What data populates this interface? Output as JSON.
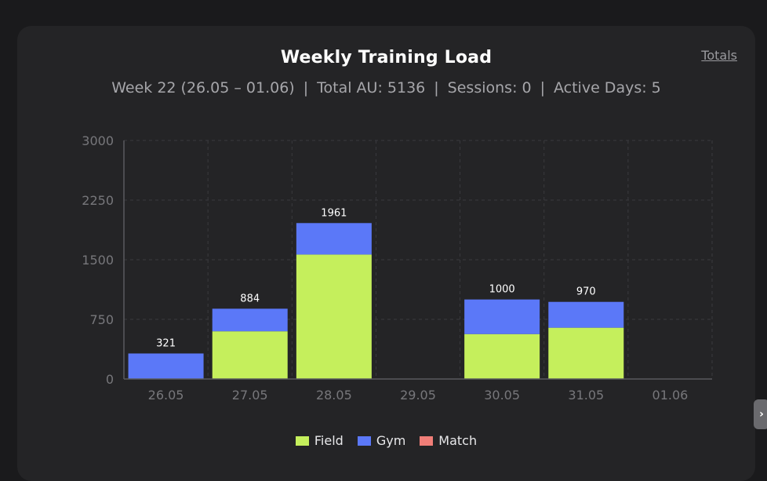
{
  "card": {
    "title": "Weekly Training Load",
    "totals_link": "Totals",
    "stats": {
      "week": "Week 22 (26.05 – 01.06)",
      "total": "Total AU: 5136",
      "sessions": "Sessions: 0",
      "active_days": "Active Days: 5",
      "separator": "|"
    }
  },
  "chart_data": {
    "type": "bar",
    "stacked": true,
    "categories": [
      "26.05",
      "27.05",
      "28.05",
      "29.05",
      "30.05",
      "31.05",
      "01.06"
    ],
    "series": [
      {
        "name": "Field",
        "color": "#c5ef5c",
        "values": [
          0,
          600,
          1565,
          0,
          565,
          645,
          0
        ]
      },
      {
        "name": "Gym",
        "color": "#5b78f8",
        "values": [
          321,
          284,
          396,
          0,
          435,
          325,
          0
        ]
      },
      {
        "name": "Match",
        "color": "#f07e78",
        "values": [
          0,
          0,
          0,
          0,
          0,
          0,
          0
        ]
      }
    ],
    "totals": [
      321,
      884,
      1961,
      null,
      1000,
      970,
      null
    ],
    "ylim": [
      0,
      3000
    ],
    "yticks": [
      "0",
      "750",
      "1500",
      "2250",
      "3000"
    ],
    "ytick_values": [
      0,
      750,
      1500,
      2250,
      3000
    ],
    "grid": true,
    "legend": "bottom"
  },
  "colors": {
    "background": "#1a1a1c",
    "card": "#242426",
    "axis": "#5a5a5e",
    "grid": "#3a3a3e",
    "tick_text": "#77777b"
  },
  "icons": {
    "side_handle": "chevron-right-icon"
  }
}
